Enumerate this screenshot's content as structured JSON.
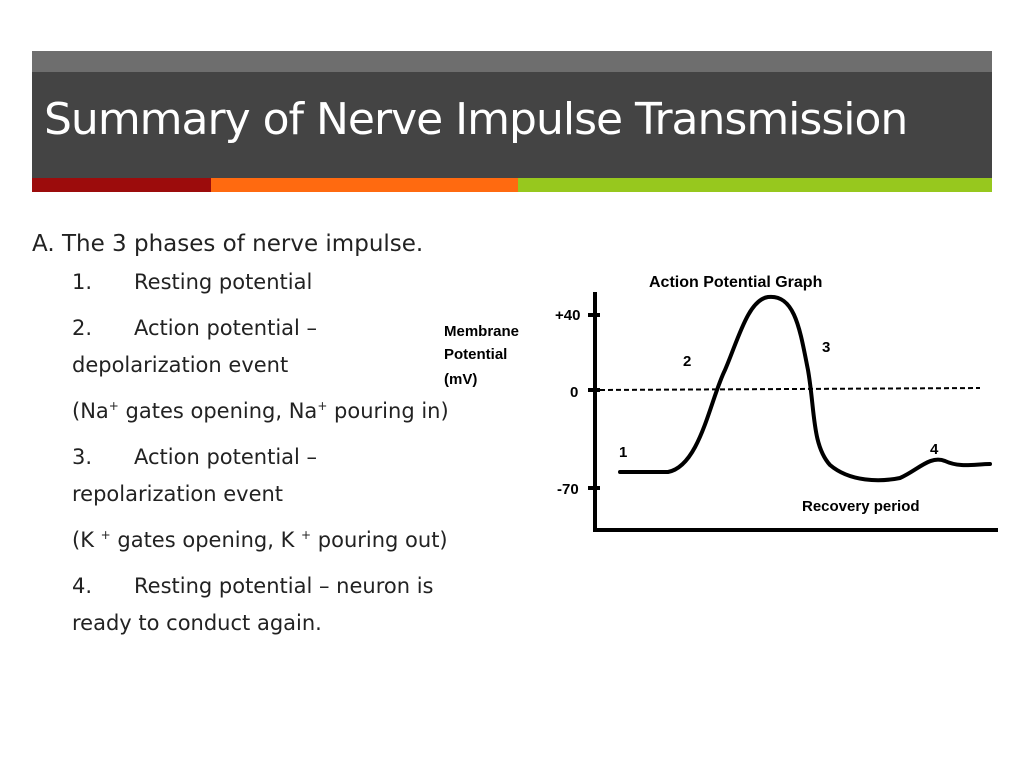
{
  "slide": {
    "title": "Summary of Nerve Impulse Transmission",
    "heading": "A.  The 3 phases of nerve impulse.",
    "items": [
      {
        "num": "1.",
        "text": "Resting potential"
      },
      {
        "num": "2.",
        "text": "Action potential –",
        "line2": "depolarization event"
      },
      {
        "pre": "(Na",
        "sup1": "+",
        "mid": " gates opening, Na",
        "sup2": "+",
        "post": " pouring in)"
      },
      {
        "num": "3.",
        "text": "Action potential –",
        "line2": "repolarization event"
      },
      {
        "pre": "(K ",
        "sup1": "+",
        "mid": " gates opening, K ",
        "sup2": "+",
        "post": " pouring out)"
      },
      {
        "num": "4.",
        "text": "Resting potential – neuron is",
        "line2": "ready to conduct again."
      }
    ]
  },
  "colors": {
    "title_bar": "#444444",
    "stripe_red": "#9c0c0c",
    "stripe_orange": "#ff6a10",
    "stripe_green": "#97c81e"
  },
  "graph": {
    "title": "Action Potential Graph",
    "ylabel": [
      "Membrane",
      "Potential",
      "(mV)"
    ],
    "ticks": [
      "+40",
      "0",
      "-70"
    ],
    "phase_labels": [
      "1",
      "2",
      "3",
      "4"
    ],
    "recovery_label": "Recovery period"
  }
}
